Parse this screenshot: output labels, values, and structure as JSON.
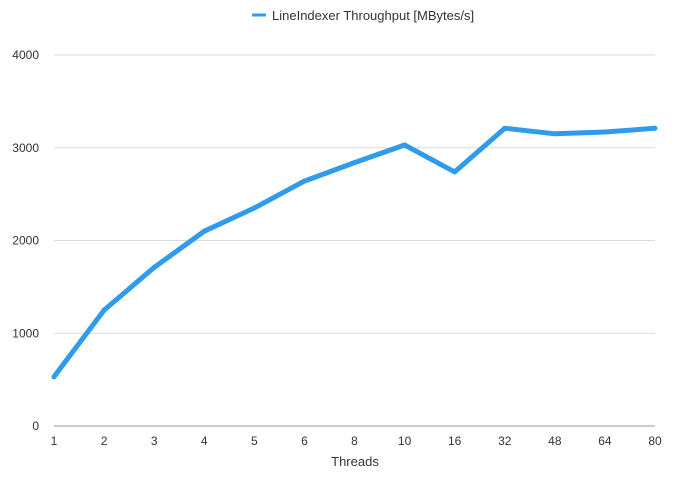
{
  "chart_data": {
    "type": "line",
    "title": "",
    "xlabel": "Threads",
    "ylabel": "",
    "categories": [
      "1",
      "2",
      "3",
      "4",
      "5",
      "6",
      "8",
      "10",
      "16",
      "32",
      "48",
      "64",
      "80"
    ],
    "series": [
      {
        "name": "LineIndexer Throughput [MBytes/s]",
        "color": "#2f9bed",
        "values": [
          530,
          1250,
          1710,
          2100,
          2350,
          2640,
          2840,
          3030,
          2740,
          3210,
          3150,
          3170,
          3210
        ]
      }
    ],
    "ylim": [
      0,
      4000
    ],
    "yticks": [
      0,
      1000,
      2000,
      3000,
      4000
    ],
    "grid": true,
    "legend_position": "top-center"
  }
}
